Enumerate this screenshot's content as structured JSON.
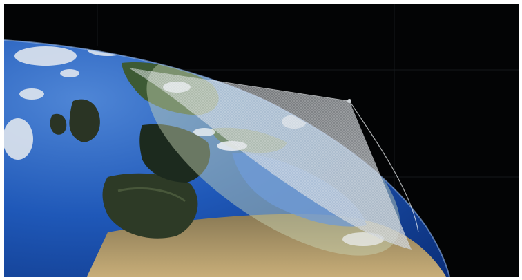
{
  "scene": {
    "subject": "satellite-coverage-cone-over-europe",
    "colors": {
      "space": "#030405",
      "grid": "#1c2226",
      "ocean_deep": "#0b2f7a",
      "ocean_mid": "#1f58b8",
      "ocean_shallow": "#4f86d6",
      "land_dark": "#1c2a1e",
      "land_green": "#3d5a34",
      "land_tan": "#9a8a60",
      "land_sand": "#c7ad78",
      "cloud": "#e8ecf0",
      "cone_fill": "#d8dde2",
      "footprint_tint": "#c9d8b8"
    }
  }
}
